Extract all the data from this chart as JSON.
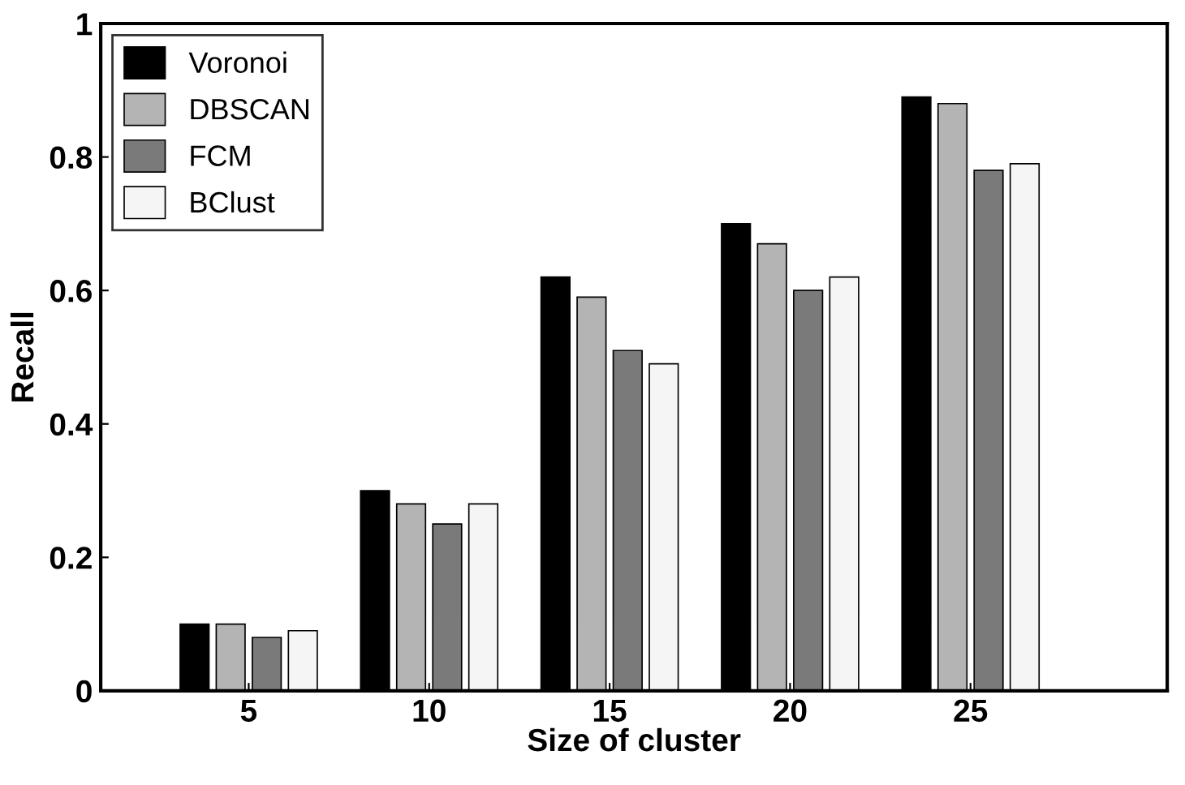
{
  "chart_data": {
    "type": "bar",
    "xlabel": "Size of cluster",
    "ylabel": "Recall",
    "categories": [
      "5",
      "10",
      "15",
      "20",
      "25"
    ],
    "series": [
      {
        "name": "Voronoi",
        "color": "#000000",
        "values": [
          0.1,
          0.3,
          0.62,
          0.7,
          0.89
        ]
      },
      {
        "name": "DBSCAN",
        "color": "#b4b4b4",
        "values": [
          0.1,
          0.28,
          0.59,
          0.67,
          0.88
        ]
      },
      {
        "name": "FCM",
        "color": "#7a7a7a",
        "values": [
          0.08,
          0.25,
          0.51,
          0.6,
          0.78
        ]
      },
      {
        "name": "BClust",
        "color": "#f5f5f5",
        "values": [
          0.09,
          0.28,
          0.49,
          0.62,
          0.79
        ]
      }
    ],
    "ylim": [
      0,
      1
    ],
    "yticks": [
      0,
      0.2,
      0.4,
      0.6,
      0.8,
      1
    ],
    "grid": false,
    "legend": "top left"
  }
}
